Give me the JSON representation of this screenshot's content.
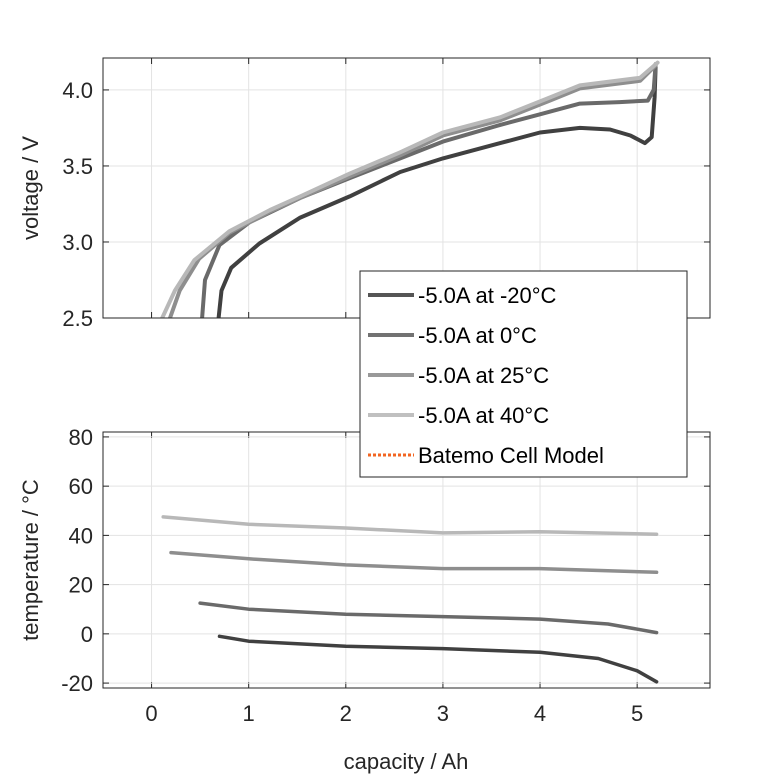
{
  "chart_data": [
    {
      "type": "line",
      "title": "",
      "xlabel": "",
      "ylabel": "voltage / V",
      "xlim": [
        -0.5,
        5.75
      ],
      "ylim": [
        2.5,
        4.21
      ],
      "xticks": [
        0,
        1,
        2,
        3,
        4,
        5
      ],
      "yticks": [
        2.5,
        3.0,
        3.5,
        4.0
      ],
      "ytick_labels": [
        "2.5",
        "3.0",
        "3.5",
        "4.0"
      ],
      "grid": true,
      "series": [
        {
          "name": "-5.0A at -20°C",
          "color": "#404040",
          "x": [
            0.69,
            0.72,
            0.82,
            1.11,
            1.53,
            2.04,
            2.56,
            3.0,
            3.59,
            4.0,
            4.41,
            4.72,
            4.93,
            5.08,
            5.15,
            5.18,
            5.19
          ],
          "y": [
            2.5,
            2.68,
            2.83,
            2.99,
            3.16,
            3.3,
            3.46,
            3.55,
            3.65,
            3.72,
            3.75,
            3.74,
            3.7,
            3.65,
            3.69,
            3.95,
            4.15
          ]
        },
        {
          "name": "-5.0A at 0°C",
          "color": "#6a6a6a",
          "x": [
            0.52,
            0.55,
            0.7,
            1.01,
            1.53,
            2.04,
            2.56,
            3.0,
            3.59,
            4.0,
            4.41,
            4.82,
            5.11,
            5.17,
            5.19
          ],
          "y": [
            2.5,
            2.75,
            2.98,
            3.13,
            3.29,
            3.42,
            3.55,
            3.66,
            3.77,
            3.84,
            3.91,
            3.92,
            3.93,
            4.0,
            4.17
          ]
        },
        {
          "name": "-5.0A at 25°C",
          "color": "#8e8e8e",
          "x": [
            0.19,
            0.29,
            0.49,
            0.8,
            1.22,
            1.53,
            2.04,
            2.56,
            3.0,
            3.59,
            4.1,
            4.41,
            5.03,
            5.19
          ],
          "y": [
            2.5,
            2.68,
            2.89,
            3.06,
            3.2,
            3.29,
            3.43,
            3.57,
            3.7,
            3.8,
            3.93,
            4.01,
            4.06,
            4.16
          ]
        },
        {
          "name": "-5.0A at 40°C",
          "color": "#b8b8b8",
          "x": [
            0.11,
            0.24,
            0.44,
            0.8,
            1.22,
            1.53,
            2.04,
            2.56,
            3.0,
            3.59,
            4.1,
            4.41,
            5.03,
            5.21
          ],
          "y": [
            2.5,
            2.68,
            2.88,
            3.07,
            3.21,
            3.3,
            3.45,
            3.59,
            3.72,
            3.82,
            3.95,
            4.03,
            4.08,
            4.18
          ]
        }
      ]
    },
    {
      "type": "line",
      "title": "",
      "xlabel": "capacity / Ah",
      "ylabel": "temperature / °C",
      "xlim": [
        -0.5,
        5.75
      ],
      "ylim": [
        -22,
        82
      ],
      "xticks": [
        0,
        1,
        2,
        3,
        4,
        5
      ],
      "xtick_labels": [
        "0",
        "1",
        "2",
        "3",
        "4",
        "5"
      ],
      "yticks": [
        -20,
        0,
        20,
        40,
        60,
        80
      ],
      "ytick_labels": [
        "-20",
        "0",
        "20",
        "40",
        "60",
        "80"
      ],
      "grid": true,
      "series": [
        {
          "name": "-5.0A at -20°C",
          "color": "#404040",
          "x": [
            0.7,
            1.0,
            2.0,
            3.0,
            4.0,
            4.6,
            5.0,
            5.2
          ],
          "y": [
            -1,
            -3,
            -5,
            -6,
            -7.5,
            -10,
            -15,
            -19.5
          ]
        },
        {
          "name": "-5.0A at 0°C",
          "color": "#6a6a6a",
          "x": [
            0.5,
            1.0,
            2.0,
            3.0,
            4.0,
            4.7,
            5.2
          ],
          "y": [
            12.5,
            10,
            8,
            7,
            6,
            4,
            0.5
          ]
        },
        {
          "name": "-5.0A at 25°C",
          "color": "#8e8e8e",
          "x": [
            0.2,
            1.0,
            2.0,
            3.0,
            4.0,
            5.2
          ],
          "y": [
            33,
            30.5,
            28,
            26.5,
            26.5,
            25
          ]
        },
        {
          "name": "-5.0A at 40°C",
          "color": "#b8b8b8",
          "x": [
            0.12,
            1.0,
            2.0,
            3.0,
            4.0,
            5.2
          ],
          "y": [
            47.5,
            44.5,
            43,
            41,
            41.5,
            40.5
          ]
        }
      ]
    }
  ],
  "legend": {
    "placement": "center-right",
    "entries": [
      {
        "label": "-5.0A at -20°C",
        "color": "#555555",
        "style": "solid"
      },
      {
        "label": "-5.0A at 0°C",
        "color": "#727272",
        "style": "solid"
      },
      {
        "label": "-5.0A at 25°C",
        "color": "#999999",
        "style": "solid"
      },
      {
        "label": "-5.0A at 40°C",
        "color": "#c0c0c0",
        "style": "solid"
      },
      {
        "label": "Batemo Cell Model",
        "color": "#f26522",
        "style": "dotted"
      }
    ]
  }
}
